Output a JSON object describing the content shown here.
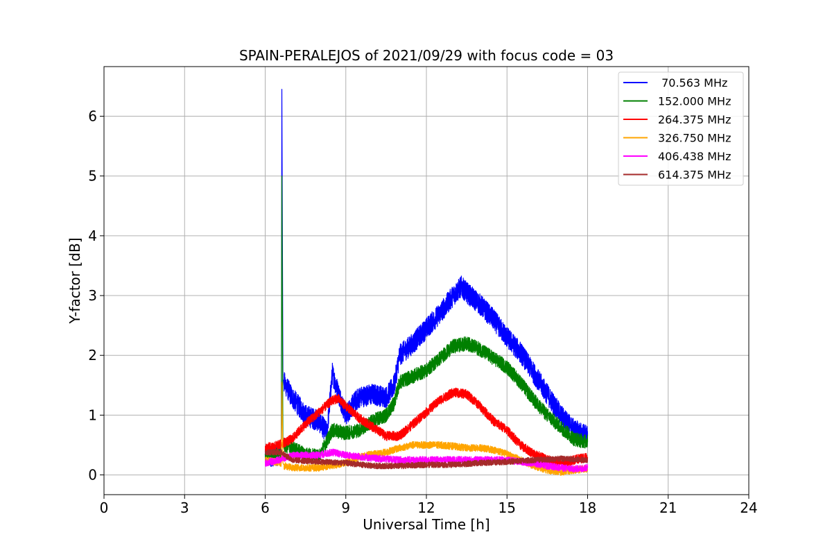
{
  "chart_data": {
    "type": "line",
    "title": "SPAIN-PERALEJOS of 2021/09/29 with focus code = 03",
    "xlabel": "Universal Time [h]",
    "ylabel": "Y-factor [dB]",
    "xlim": [
      0,
      24
    ],
    "ylim": [
      -0.33,
      6.83
    ],
    "xticks": [
      "0",
      "3",
      "6",
      "9",
      "12",
      "15",
      "18",
      "21",
      "24"
    ],
    "yticks": [
      "0",
      "1",
      "2",
      "3",
      "4",
      "5",
      "6"
    ],
    "grid": true,
    "legend_position": "top-right",
    "series": [
      {
        "name": " 70.563 MHz",
        "color": "#0000ff",
        "noise": 0.18,
        "x": [
          6.0,
          6.6,
          6.62,
          6.66,
          6.7,
          7.0,
          7.5,
          8.0,
          8.3,
          8.5,
          8.7,
          9.0,
          9.3,
          9.5,
          10.0,
          10.5,
          10.8,
          11.0,
          11.5,
          12.0,
          12.5,
          13.0,
          13.3,
          13.5,
          14.0,
          14.5,
          15.0,
          15.5,
          16.0,
          16.5,
          17.0,
          17.5,
          18.0
        ],
        "y": [
          0.3,
          0.35,
          6.45,
          1.6,
          1.55,
          1.3,
          1.0,
          0.9,
          0.7,
          1.7,
          1.4,
          1.0,
          1.2,
          1.3,
          1.35,
          1.3,
          1.5,
          2.0,
          2.2,
          2.45,
          2.7,
          3.0,
          3.15,
          3.05,
          2.85,
          2.6,
          2.3,
          2.05,
          1.7,
          1.35,
          1.0,
          0.75,
          0.65
        ]
      },
      {
        "name": "152.000 MHz",
        "color": "#008000",
        "noise": 0.12,
        "x": [
          6.0,
          6.6,
          6.62,
          6.66,
          6.7,
          7.0,
          7.5,
          8.0,
          8.5,
          9.0,
          9.5,
          10.0,
          10.5,
          10.8,
          11.0,
          11.5,
          12.0,
          12.5,
          13.0,
          13.5,
          14.0,
          14.5,
          15.0,
          15.5,
          16.0,
          16.5,
          17.0,
          17.5,
          18.0
        ],
        "y": [
          0.3,
          0.35,
          5.0,
          0.5,
          0.5,
          0.45,
          0.35,
          0.3,
          0.75,
          0.7,
          0.75,
          0.9,
          1.0,
          1.2,
          1.55,
          1.65,
          1.75,
          1.95,
          2.15,
          2.2,
          2.1,
          1.95,
          1.8,
          1.55,
          1.25,
          1.0,
          0.8,
          0.6,
          0.55
        ]
      },
      {
        "name": "264.375 MHz",
        "color": "#ff0000",
        "noise": 0.08,
        "x": [
          6.0,
          6.5,
          7.0,
          7.5,
          8.0,
          8.5,
          8.7,
          9.0,
          9.5,
          10.0,
          10.5,
          11.0,
          11.5,
          12.0,
          12.5,
          13.0,
          13.5,
          14.0,
          14.5,
          15.0,
          15.5,
          16.0,
          16.5,
          17.0,
          17.5,
          18.0
        ],
        "y": [
          0.45,
          0.5,
          0.6,
          0.85,
          1.05,
          1.25,
          1.28,
          1.15,
          0.95,
          0.8,
          0.65,
          0.65,
          0.85,
          1.05,
          1.25,
          1.38,
          1.35,
          1.15,
          0.9,
          0.75,
          0.5,
          0.35,
          0.25,
          0.2,
          0.25,
          0.3
        ]
      },
      {
        "name": "326.750 MHz",
        "color": "#ffa500",
        "noise": 0.06,
        "x": [
          6.0,
          6.6,
          6.62,
          6.66,
          6.7,
          7.0,
          8.0,
          9.0,
          9.5,
          10.0,
          10.5,
          11.0,
          11.5,
          12.0,
          12.5,
          13.0,
          13.5,
          14.0,
          14.5,
          15.0,
          15.5,
          16.0,
          16.5,
          17.0,
          17.5,
          18.0
        ],
        "y": [
          0.25,
          0.2,
          1.55,
          0.2,
          0.15,
          0.12,
          0.12,
          0.2,
          0.3,
          0.35,
          0.38,
          0.45,
          0.5,
          0.5,
          0.5,
          0.48,
          0.45,
          0.45,
          0.42,
          0.35,
          0.25,
          0.15,
          0.08,
          0.05,
          0.08,
          0.1
        ]
      },
      {
        "name": "406.438 MHz",
        "color": "#ff00ff",
        "noise": 0.06,
        "x": [
          6.0,
          6.5,
          7.0,
          7.5,
          8.0,
          8.5,
          9.0,
          10.0,
          11.0,
          12.0,
          13.0,
          14.0,
          15.0,
          15.5,
          16.0,
          16.5,
          17.0,
          17.5,
          18.0
        ],
        "y": [
          0.2,
          0.25,
          0.32,
          0.33,
          0.33,
          0.38,
          0.33,
          0.28,
          0.25,
          0.25,
          0.25,
          0.25,
          0.25,
          0.22,
          0.2,
          0.15,
          0.12,
          0.1,
          0.12
        ]
      },
      {
        "name": "614.375 MHz",
        "color": "#a52a2a",
        "noise": 0.05,
        "x": [
          6.0,
          6.6,
          7.0,
          8.0,
          9.0,
          10.0,
          11.0,
          12.0,
          13.0,
          14.0,
          15.0,
          16.0,
          17.0,
          18.0
        ],
        "y": [
          0.38,
          0.38,
          0.25,
          0.22,
          0.2,
          0.15,
          0.15,
          0.17,
          0.17,
          0.2,
          0.22,
          0.25,
          0.27,
          0.25
        ]
      }
    ]
  }
}
